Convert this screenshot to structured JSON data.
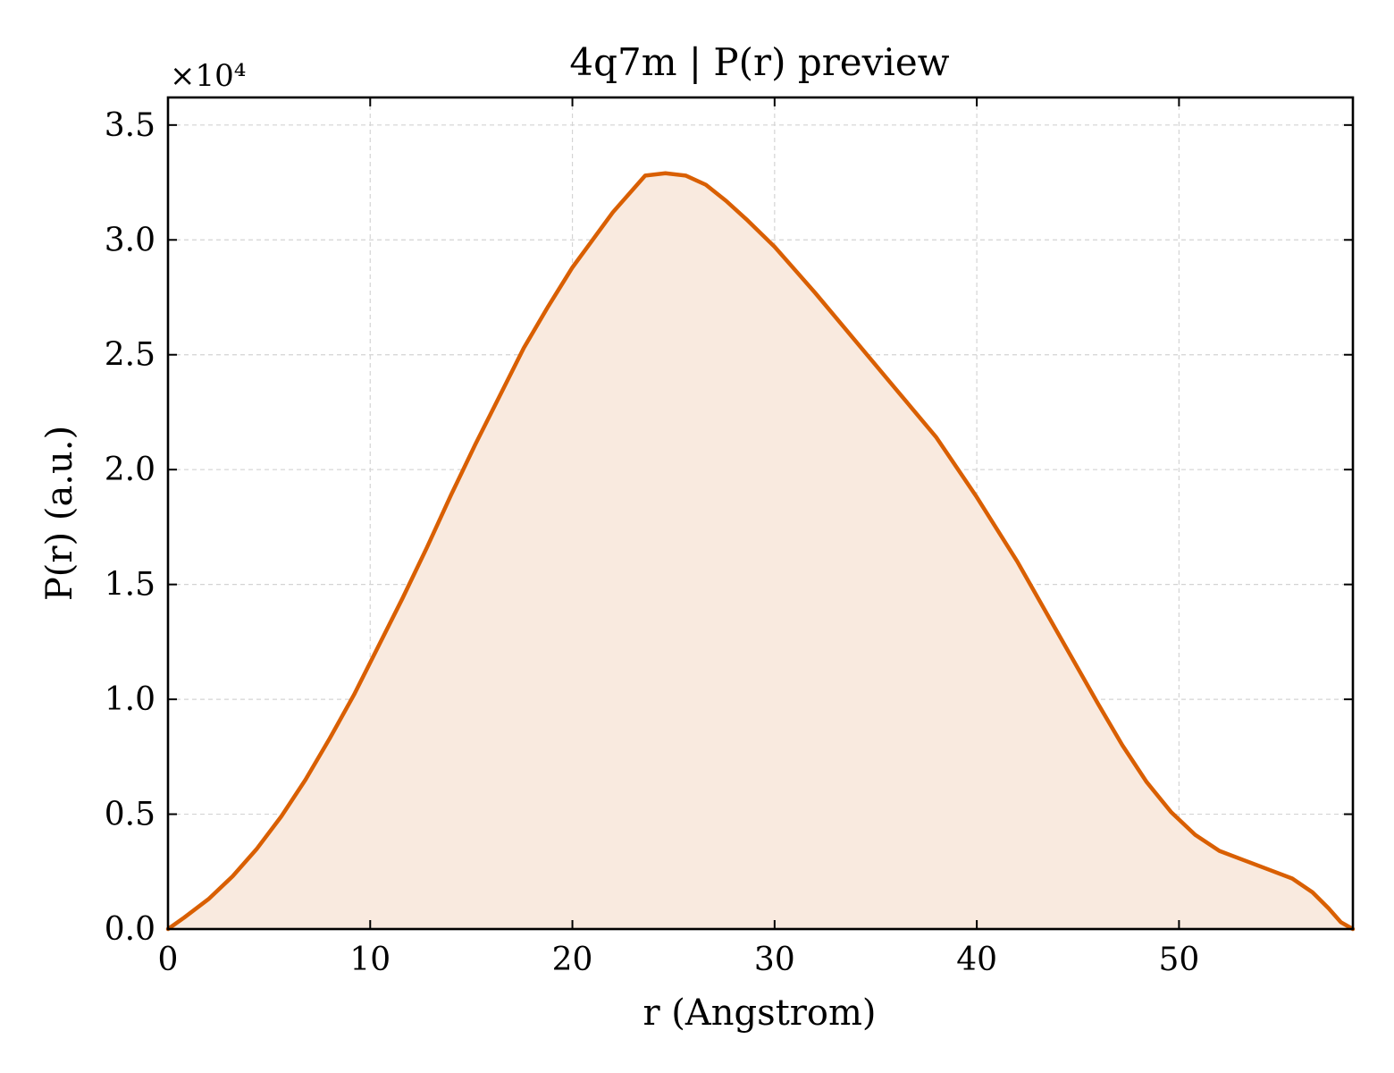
{
  "chart_data": {
    "type": "area",
    "title": "4q7m | P(r) preview",
    "xlabel": "r (Angstrom)",
    "ylabel": "P(r) (a.u.)",
    "y_offset_text": "×10⁴",
    "xlim": [
      0,
      58.6
    ],
    "ylim": [
      0,
      36200
    ],
    "x_ticks": [
      0,
      10,
      20,
      30,
      40,
      50
    ],
    "x_tick_labels": [
      "0",
      "10",
      "20",
      "30",
      "40",
      "50"
    ],
    "y_ticks": [
      0,
      5000,
      10000,
      15000,
      20000,
      25000,
      30000,
      35000
    ],
    "y_tick_labels": [
      "0.0",
      "0.5",
      "1.0",
      "1.5",
      "2.0",
      "2.5",
      "3.0",
      "3.5"
    ],
    "grid": true,
    "line_color": "#d95f02",
    "fill_color": "#f9eadf",
    "series": [
      {
        "x": [
          0,
          0.8,
          2.0,
          3.2,
          4.4,
          5.6,
          6.8,
          8.0,
          9.2,
          10.4,
          11.6,
          12.8,
          14.0,
          15.2,
          16.4,
          17.6,
          18.8,
          20.0,
          21.0,
          22.0,
          23.0,
          23.6,
          24.6,
          25.6,
          26.6,
          27.6,
          28.6,
          30.0,
          32.0,
          34.0,
          36.0,
          38.0,
          40.0,
          42.0,
          44.0,
          46.0,
          47.2,
          48.4,
          49.6,
          50.8,
          52.0,
          53.2,
          54.4,
          55.6,
          56.6,
          57.4,
          58.0,
          58.6
        ],
        "y": [
          0,
          500,
          1300,
          2300,
          3500,
          4900,
          6500,
          8300,
          10200,
          12300,
          14400,
          16600,
          18900,
          21100,
          23200,
          25300,
          27100,
          28800,
          30000,
          31200,
          32200,
          32800,
          32900,
          32800,
          32400,
          31700,
          30900,
          29700,
          27700,
          25600,
          23500,
          21400,
          18800,
          16000,
          12900,
          9800,
          8000,
          6400,
          5100,
          4100,
          3400,
          3000,
          2600,
          2200,
          1600,
          900,
          300,
          0
        ]
      }
    ]
  }
}
